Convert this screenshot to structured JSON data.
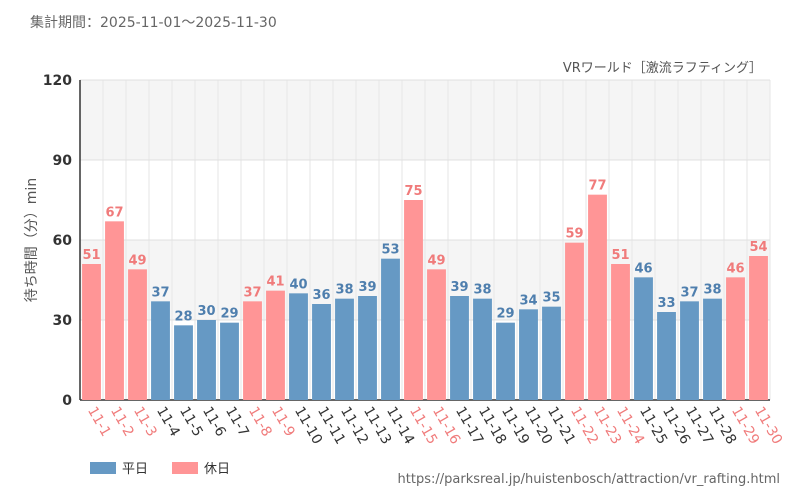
{
  "period_text": "集計期間：2025-11-01～2025-11-30",
  "source_url": "https://parksreal.jp/huistenbosch/attraction/vr_rafting.html",
  "colors": {
    "weekday": "#6699c4",
    "holiday": "#ff9596",
    "weekday_label": "#4f7fae",
    "holiday_label": "#f07b7b"
  },
  "chart_data": {
    "type": "bar",
    "title": "VRワールド［激流ラフティング］",
    "xlabel": "",
    "ylabel": "待ち時間（分）min",
    "ylim": [
      0,
      120
    ],
    "yticks": [
      0,
      30,
      60,
      90,
      120
    ],
    "categories": [
      "11-1",
      "11-2",
      "11-3",
      "11-4",
      "11-5",
      "11-6",
      "11-7",
      "11-8",
      "11-9",
      "11-10",
      "11-11",
      "11-12",
      "11-13",
      "11-14",
      "11-15",
      "11-16",
      "11-17",
      "11-18",
      "11-19",
      "11-20",
      "11-21",
      "11-22",
      "11-23",
      "11-24",
      "11-25",
      "11-26",
      "11-27",
      "11-28",
      "11-29",
      "11-30"
    ],
    "values": [
      51,
      67,
      49,
      37,
      28,
      30,
      29,
      37,
      41,
      40,
      36,
      38,
      39,
      53,
      75,
      49,
      39,
      38,
      29,
      34,
      35,
      59,
      77,
      51,
      46,
      33,
      37,
      38,
      46,
      54
    ],
    "day_type": [
      "holiday",
      "holiday",
      "holiday",
      "weekday",
      "weekday",
      "weekday",
      "weekday",
      "holiday",
      "holiday",
      "weekday",
      "weekday",
      "weekday",
      "weekday",
      "weekday",
      "holiday",
      "holiday",
      "weekday",
      "weekday",
      "weekday",
      "weekday",
      "weekday",
      "holiday",
      "holiday",
      "holiday",
      "weekday",
      "weekday",
      "weekday",
      "weekday",
      "holiday",
      "holiday"
    ],
    "legend": [
      {
        "key": "weekday",
        "label": "平日"
      },
      {
        "key": "holiday",
        "label": "休日"
      }
    ]
  }
}
